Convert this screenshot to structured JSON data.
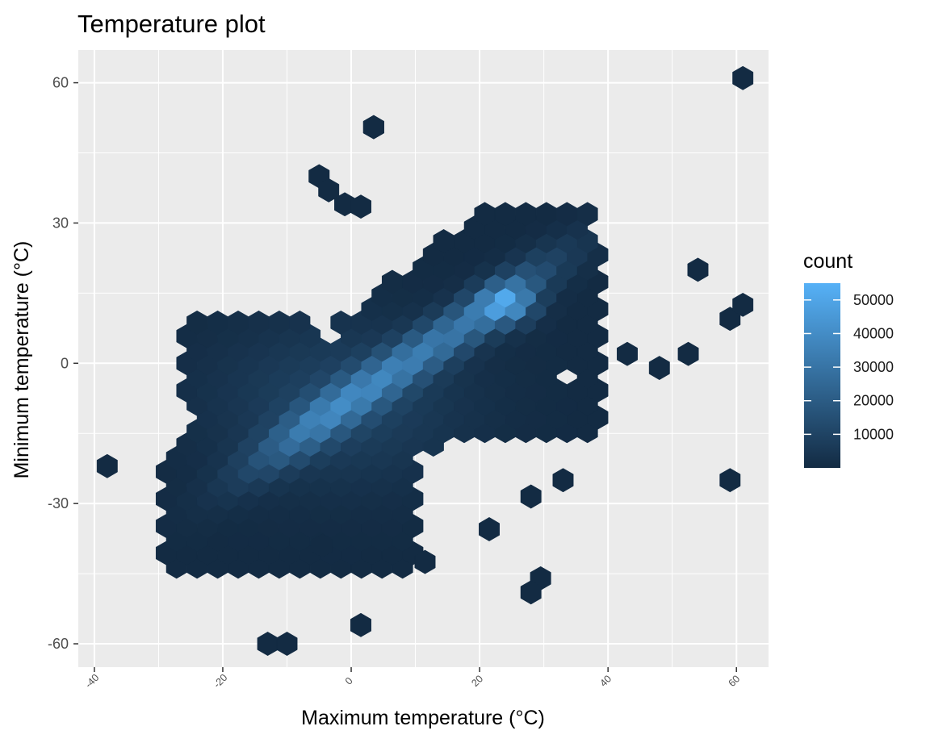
{
  "chart_data": {
    "type": "heatmap",
    "subtype": "hexbin",
    "title": "Temperature plot",
    "xlabel": "Maximum temperature (°C)",
    "ylabel": "Minimum temperature (°C)",
    "xlim": [
      -42.5,
      65
    ],
    "ylim": [
      -65,
      67
    ],
    "x_ticks": [
      -40,
      -20,
      0,
      20,
      40,
      60
    ],
    "x_tick_labels": [
      "-40",
      "-20",
      "0",
      "20",
      "40",
      "60"
    ],
    "y_ticks": [
      -60,
      -30,
      0,
      30,
      60
    ],
    "y_tick_labels": [
      "-60",
      "-30",
      "0",
      "30",
      "60"
    ],
    "grid": true,
    "legend": {
      "title": "count",
      "position": "right",
      "breaks": [
        10000,
        20000,
        30000,
        40000,
        50000
      ],
      "break_labels": [
        "10000",
        "20000",
        "30000",
        "40000",
        "50000"
      ],
      "limits": [
        1,
        55000
      ],
      "low_color": "#132B43",
      "high_color": "#56B1F7"
    },
    "outlier_bins": [
      [
        61,
        61
      ],
      [
        3.5,
        50.5
      ],
      [
        -38,
        -22
      ],
      [
        -13,
        -60
      ],
      [
        -10,
        -60
      ],
      [
        1.5,
        -56
      ],
      [
        29.5,
        -46
      ],
      [
        28,
        -49
      ],
      [
        59,
        -25
      ],
      [
        54,
        20
      ],
      [
        43,
        2
      ],
      [
        48,
        -1
      ],
      [
        52.5,
        2
      ],
      [
        59,
        9.5
      ],
      [
        61,
        12.5
      ],
      [
        28,
        -28.5
      ],
      [
        33,
        -25
      ],
      [
        21.5,
        -35.5
      ],
      [
        11.5,
        -42.5
      ],
      [
        -4.5,
        -39
      ],
      [
        -5,
        40
      ],
      [
        -3.5,
        37
      ],
      [
        -1,
        34
      ],
      [
        1.5,
        33.5
      ],
      [
        3.5,
        50.5
      ]
    ],
    "density_peak": {
      "x": 24.5,
      "y": 13,
      "count": 55000
    },
    "density_ridge": [
      [
        -8,
        -12
      ],
      [
        -2,
        -6
      ],
      [
        4,
        -1
      ],
      [
        10,
        2
      ],
      [
        16,
        6
      ],
      [
        22,
        10
      ],
      [
        26,
        16
      ]
    ]
  }
}
